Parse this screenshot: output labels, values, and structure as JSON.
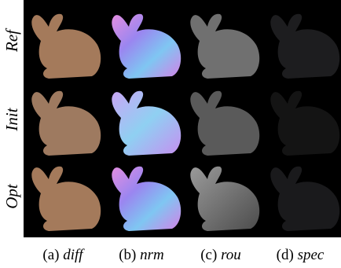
{
  "rows": [
    {
      "label": "Ref"
    },
    {
      "label": "Init"
    },
    {
      "label": "Opt"
    }
  ],
  "columns": [
    {
      "tag": "(a)",
      "name": "diff"
    },
    {
      "tag": "(b)",
      "name": "nrm"
    },
    {
      "tag": "(c)",
      "name": "rou"
    },
    {
      "tag": "(d)",
      "name": "spec"
    }
  ]
}
